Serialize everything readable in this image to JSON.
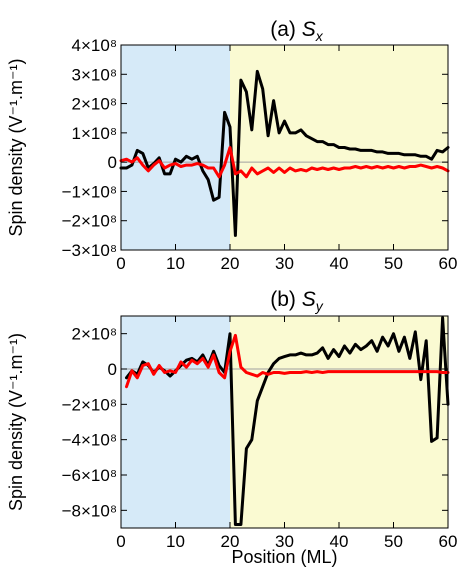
{
  "chart_data": [
    {
      "type": "line",
      "title_prefix": "(a) ",
      "title_symbol": "S",
      "title_subscript": "x",
      "ylabel": "Spin density (V⁻¹.m⁻¹)",
      "xlabel": "",
      "xlim": [
        0,
        60
      ],
      "ylim": [
        -300000000,
        400000000
      ],
      "xticks": [
        0,
        10,
        20,
        30,
        40,
        50,
        60
      ],
      "yticks": [
        {
          "value": 400000000,
          "label": "4×10⁸"
        },
        {
          "value": 300000000,
          "label": "3×10⁸"
        },
        {
          "value": 200000000,
          "label": "2×10⁸"
        },
        {
          "value": 100000000,
          "label": "1×10⁸"
        },
        {
          "value": 0,
          "label": "0"
        },
        {
          "value": -100000000,
          "label": "−1×10⁸"
        },
        {
          "value": -200000000,
          "label": "−2×10⁸"
        },
        {
          "value": -300000000,
          "label": "−3×10⁸"
        }
      ],
      "regions": [
        {
          "from": 0,
          "to": 20,
          "color": "#d6eaf8"
        },
        {
          "from": 20,
          "to": 60,
          "color": "#fafad2"
        }
      ],
      "grid": false,
      "series": [
        {
          "color": "#000000",
          "x": [
            0,
            1,
            2,
            3,
            4,
            5,
            6,
            7,
            8,
            9,
            10,
            11,
            12,
            13,
            14,
            15,
            16,
            17,
            18,
            19,
            20,
            21,
            22,
            23,
            24,
            25,
            26,
            27,
            28,
            29,
            30,
            31,
            32,
            33,
            34,
            35,
            36,
            37,
            38,
            39,
            40,
            41,
            42,
            43,
            44,
            45,
            46,
            47,
            48,
            49,
            50,
            51,
            52,
            53,
            54,
            55,
            56,
            57,
            58,
            59,
            60
          ],
          "values": [
            -20000000,
            -20000000,
            -10000000,
            40000000,
            30000000,
            -20000000,
            -5000000,
            15000000,
            -40000000,
            -40000000,
            10000000,
            0,
            20000000,
            10000000,
            20000000,
            -30000000,
            -60000000,
            -130000000,
            -120000000,
            170000000,
            120000000,
            -250000000,
            280000000,
            240000000,
            110000000,
            310000000,
            250000000,
            90000000,
            210000000,
            100000000,
            140000000,
            100000000,
            100000000,
            110000000,
            90000000,
            80000000,
            70000000,
            70000000,
            60000000,
            60000000,
            50000000,
            50000000,
            45000000,
            45000000,
            40000000,
            40000000,
            40000000,
            35000000,
            35000000,
            30000000,
            30000000,
            30000000,
            25000000,
            25000000,
            25000000,
            20000000,
            20000000,
            10000000,
            40000000,
            35000000,
            50000000
          ]
        },
        {
          "color": "#ff0000",
          "x": [
            0,
            1,
            2,
            3,
            4,
            5,
            6,
            7,
            8,
            9,
            10,
            11,
            12,
            13,
            14,
            15,
            16,
            17,
            18,
            19,
            20,
            21,
            22,
            23,
            24,
            25,
            26,
            27,
            28,
            29,
            30,
            31,
            32,
            33,
            34,
            35,
            36,
            37,
            38,
            39,
            40,
            41,
            42,
            43,
            44,
            45,
            46,
            47,
            48,
            49,
            50,
            51,
            52,
            53,
            54,
            55,
            56,
            57,
            58,
            59,
            60
          ],
          "values": [
            5000000,
            10000000,
            0,
            15000000,
            -10000000,
            -30000000,
            -10000000,
            5000000,
            -20000000,
            -10000000,
            -5000000,
            -15000000,
            -10000000,
            -10000000,
            -5000000,
            -10000000,
            -20000000,
            -20000000,
            -50000000,
            -10000000,
            50000000,
            -40000000,
            -30000000,
            -50000000,
            -20000000,
            -40000000,
            -30000000,
            -20000000,
            -35000000,
            -20000000,
            -35000000,
            -20000000,
            -30000000,
            -25000000,
            -30000000,
            -20000000,
            -25000000,
            -20000000,
            -25000000,
            -20000000,
            -25000000,
            -20000000,
            -20000000,
            -15000000,
            -20000000,
            -15000000,
            -20000000,
            -15000000,
            -20000000,
            -15000000,
            -20000000,
            -15000000,
            -20000000,
            -15000000,
            -15000000,
            -10000000,
            -15000000,
            -20000000,
            -15000000,
            -20000000,
            -30000000
          ]
        }
      ]
    },
    {
      "type": "line",
      "title_prefix": "(b) ",
      "title_symbol": "S",
      "title_subscript": "y",
      "ylabel": "Spin density (V⁻¹.m⁻¹)",
      "xlabel": "Position (ML)",
      "xlim": [
        0,
        60
      ],
      "ylim": [
        -900000000,
        300000000
      ],
      "xticks": [
        0,
        10,
        20,
        30,
        40,
        50,
        60
      ],
      "yticks": [
        {
          "value": 200000000,
          "label": "2×10⁸"
        },
        {
          "value": 0,
          "label": "0"
        },
        {
          "value": -200000000,
          "label": "−2×10⁸"
        },
        {
          "value": -400000000,
          "label": "−4×10⁸"
        },
        {
          "value": -600000000,
          "label": "−6×10⁸"
        },
        {
          "value": -800000000,
          "label": "−8×10⁸"
        }
      ],
      "regions": [
        {
          "from": 0,
          "to": 20,
          "color": "#d6eaf8"
        },
        {
          "from": 20,
          "to": 60,
          "color": "#fafad2"
        }
      ],
      "grid": false,
      "series": [
        {
          "color": "#000000",
          "x": [
            1,
            2,
            3,
            4,
            5,
            6,
            7,
            8,
            9,
            10,
            11,
            12,
            13,
            14,
            15,
            16,
            17,
            18,
            19,
            20,
            21,
            22,
            23,
            24,
            25,
            26,
            27,
            28,
            29,
            30,
            31,
            32,
            33,
            34,
            35,
            36,
            37,
            38,
            39,
            40,
            41,
            42,
            43,
            44,
            45,
            46,
            47,
            48,
            49,
            50,
            51,
            52,
            53,
            54,
            55,
            56,
            57,
            58,
            59,
            60
          ],
          "values": [
            -50000000,
            -10000000,
            -30000000,
            40000000,
            20000000,
            -20000000,
            10000000,
            -10000000,
            -40000000,
            -10000000,
            20000000,
            50000000,
            60000000,
            40000000,
            80000000,
            20000000,
            100000000,
            20000000,
            -20000000,
            200000000,
            -880000000,
            -880000000,
            -450000000,
            -400000000,
            -180000000,
            -100000000,
            -20000000,
            30000000,
            60000000,
            70000000,
            80000000,
            80000000,
            90000000,
            80000000,
            80000000,
            90000000,
            120000000,
            60000000,
            110000000,
            70000000,
            130000000,
            90000000,
            140000000,
            110000000,
            130000000,
            160000000,
            100000000,
            180000000,
            130000000,
            200000000,
            100000000,
            180000000,
            60000000,
            210000000,
            -60000000,
            160000000,
            -410000000,
            -390000000,
            290000000,
            -200000000
          ]
        },
        {
          "color": "#ff0000",
          "x": [
            1,
            2,
            3,
            4,
            5,
            6,
            7,
            8,
            9,
            10,
            11,
            12,
            13,
            14,
            15,
            16,
            17,
            18,
            19,
            20,
            21,
            22,
            23,
            24,
            25,
            26,
            27,
            28,
            29,
            30,
            31,
            32,
            33,
            34,
            35,
            36,
            37,
            38,
            39,
            40,
            41,
            42,
            43,
            44,
            45,
            46,
            47,
            48,
            49,
            50,
            51,
            52,
            53,
            54,
            55,
            56,
            57,
            58,
            59,
            60
          ],
          "values": [
            -100000000,
            -10000000,
            -50000000,
            20000000,
            30000000,
            -30000000,
            20000000,
            -20000000,
            -10000000,
            -20000000,
            40000000,
            10000000,
            50000000,
            30000000,
            60000000,
            10000000,
            80000000,
            -20000000,
            -50000000,
            100000000,
            190000000,
            10000000,
            -20000000,
            -30000000,
            -40000000,
            -20000000,
            -30000000,
            -20000000,
            -20000000,
            -25000000,
            -20000000,
            -20000000,
            -20000000,
            -15000000,
            -20000000,
            -15000000,
            -20000000,
            -15000000,
            -15000000,
            -15000000,
            -15000000,
            -15000000,
            -15000000,
            -15000000,
            -15000000,
            -15000000,
            -15000000,
            -15000000,
            -15000000,
            -15000000,
            -15000000,
            -15000000,
            -15000000,
            -15000000,
            -15000000,
            -15000000,
            -15000000,
            -15000000,
            -20000000,
            -20000000
          ]
        }
      ]
    }
  ]
}
